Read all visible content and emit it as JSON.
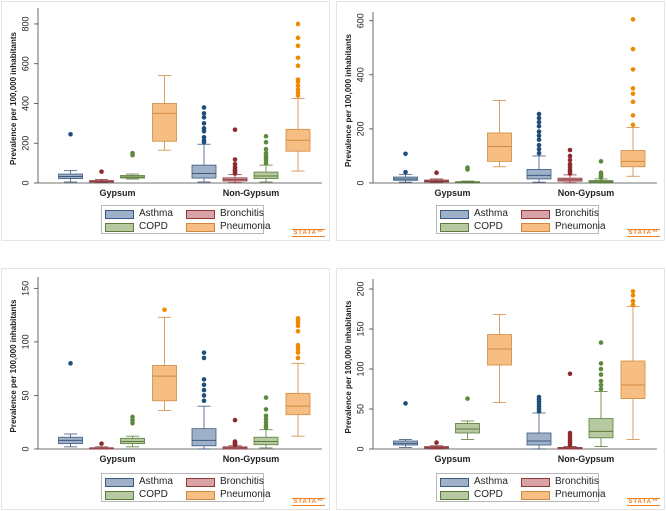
{
  "colors": {
    "Asthma": {
      "fill": "#9eb1c8",
      "line": "#3c5a80",
      "dot": "#1f4e79"
    },
    "Bronchitis": {
      "fill": "#d9a2a4",
      "line": "#8c3a3e",
      "dot": "#8c2a30"
    },
    "COPD": {
      "fill": "#b6c9a0",
      "line": "#5b7d3c",
      "dot": "#5b8a3c"
    },
    "Pneumonia": {
      "fill": "#f7be84",
      "line": "#d08a40",
      "dot": "#ef8a00"
    }
  },
  "watermark": "STATA™",
  "chart_data": [
    {
      "type": "box",
      "ylabel": "Prevalence per 100,000 inhabitants",
      "categories": [
        "Gypsum",
        "Non-Gypsum"
      ],
      "ylim": [
        0,
        850
      ],
      "yticks": [
        "0",
        "200",
        "400",
        "600",
        "800"
      ],
      "ytick_values": [
        0,
        200,
        400,
        600,
        800
      ],
      "legend": [
        "Asthma",
        "Bronchitis",
        "COPD",
        "Pneumonia"
      ],
      "series": [
        {
          "name": "Asthma",
          "boxes": [
            {
              "min": 5,
              "q1": 22,
              "median": 33,
              "q3": 45,
              "max": 62,
              "outliers": [
                245
              ]
            },
            {
              "min": 5,
              "q1": 25,
              "median": 48,
              "q3": 90,
              "max": 195,
              "outliers": [
                205,
                215,
                230,
                260,
                275,
                300,
                330,
                350,
                380
              ]
            }
          ]
        },
        {
          "name": "Bronchitis",
          "boxes": [
            {
              "min": 3,
              "q1": 5,
              "median": 8,
              "q3": 12,
              "max": 18,
              "outliers": [
                57
              ]
            },
            {
              "min": 2,
              "q1": 10,
              "median": 17,
              "q3": 26,
              "max": 42,
              "outliers": [
                48,
                55,
                62,
                70,
                80,
                95,
                118,
                268
              ]
            }
          ]
        },
        {
          "name": "COPD",
          "boxes": [
            {
              "min": 20,
              "q1": 25,
              "median": 30,
              "q3": 38,
              "max": 45,
              "outliers": [
                140,
                150
              ]
            },
            {
              "min": 5,
              "q1": 22,
              "median": 35,
              "q3": 55,
              "max": 90,
              "outliers": [
                100,
                115,
                125,
                135,
                150,
                170,
                205,
                235
              ]
            }
          ]
        },
        {
          "name": "Pneumonia",
          "boxes": [
            {
              "min": 165,
              "q1": 210,
              "median": 350,
              "q3": 400,
              "max": 540,
              "outliers": []
            },
            {
              "min": 60,
              "q1": 160,
              "median": 215,
              "q3": 270,
              "max": 425,
              "outliers": [
                440,
                455,
                470,
                490,
                510,
                520,
                590,
                630,
                690,
                730,
                800
              ]
            }
          ]
        }
      ]
    },
    {
      "type": "box",
      "ylabel": "Prevalence per 100,000 inhabitants",
      "categories": [
        "Gypsum",
        "Non-Gypsum"
      ],
      "ylim": [
        0,
        610
      ],
      "yticks": [
        "0",
        "200",
        "400",
        "600"
      ],
      "ytick_values": [
        0,
        200,
        400,
        600
      ],
      "legend": [
        "Asthma",
        "Bronchitis",
        "COPD",
        "Pneumonia"
      ],
      "series": [
        {
          "name": "Asthma",
          "boxes": [
            {
              "min": 3,
              "q1": 10,
              "median": 15,
              "q3": 22,
              "max": 32,
              "outliers": [
                40,
                108
              ]
            },
            {
              "min": 3,
              "q1": 15,
              "median": 28,
              "q3": 50,
              "max": 100,
              "outliers": [
                110,
                125,
                140,
                160,
                175,
                190,
                210,
                225,
                240,
                255
              ]
            }
          ]
        },
        {
          "name": "Bronchitis",
          "boxes": [
            {
              "min": 2,
              "q1": 4,
              "median": 7,
              "q3": 11,
              "max": 15,
              "outliers": [
                38
              ]
            },
            {
              "min": 1,
              "q1": 7,
              "median": 12,
              "q3": 18,
              "max": 30,
              "outliers": [
                35,
                42,
                50,
                60,
                70,
                85,
                100,
                122
              ]
            }
          ]
        },
        {
          "name": "COPD",
          "boxes": [
            {
              "min": 1,
              "q1": 2,
              "median": 3,
              "q3": 5,
              "max": 7,
              "outliers": [
                50,
                57
              ]
            },
            {
              "min": 0,
              "q1": 2,
              "median": 5,
              "q3": 9,
              "max": 15,
              "outliers": [
                20,
                25,
                30,
                38,
                80
              ]
            }
          ]
        },
        {
          "name": "Pneumonia",
          "boxes": [
            {
              "min": 60,
              "q1": 80,
              "median": 135,
              "q3": 185,
              "max": 305,
              "outliers": []
            },
            {
              "min": 25,
              "q1": 60,
              "median": 80,
              "q3": 120,
              "max": 205,
              "outliers": [
                215,
                250,
                300,
                330,
                350,
                420,
                495,
                605
              ]
            }
          ]
        }
      ]
    },
    {
      "type": "box",
      "ylabel": "Prevalence per 100,000 inhabitants",
      "categories": [
        "Gypsum",
        "Non-Gypsum"
      ],
      "ylim": [
        0,
        155
      ],
      "yticks": [
        "0",
        "50",
        "100",
        "150"
      ],
      "ytick_values": [
        0,
        50,
        100,
        150
      ],
      "legend": [
        "Asthma",
        "Bronchitis",
        "COPD",
        "Pneumonia"
      ],
      "series": [
        {
          "name": "Asthma",
          "boxes": [
            {
              "min": 2,
              "q1": 5,
              "median": 8,
              "q3": 11,
              "max": 14,
              "outliers": [
                80
              ]
            },
            {
              "min": 0,
              "q1": 3,
              "median": 8,
              "q3": 19,
              "max": 40,
              "outliers": [
                45,
                50,
                55,
                60,
                65,
                85,
                90
              ]
            }
          ]
        },
        {
          "name": "Bronchitis",
          "boxes": [
            {
              "min": 0,
              "q1": 0,
              "median": 1,
              "q3": 1,
              "max": 2,
              "outliers": [
                5
              ]
            },
            {
              "min": 0,
              "q1": 0,
              "median": 1,
              "q3": 2,
              "max": 3,
              "outliers": [
                4,
                5,
                6,
                7,
                27
              ]
            }
          ]
        },
        {
          "name": "COPD",
          "boxes": [
            {
              "min": 2,
              "q1": 5,
              "median": 7,
              "q3": 10,
              "max": 12,
              "outliers": [
                24,
                27,
                30
              ]
            },
            {
              "min": 1,
              "q1": 4,
              "median": 7,
              "q3": 11,
              "max": 18,
              "outliers": [
                20,
                22,
                25,
                28,
                31,
                37,
                48
              ]
            }
          ]
        },
        {
          "name": "Pneumonia",
          "boxes": [
            {
              "min": 36,
              "q1": 45,
              "median": 68,
              "q3": 78,
              "max": 123,
              "outliers": [
                130
              ]
            },
            {
              "min": 12,
              "q1": 32,
              "median": 40,
              "q3": 52,
              "max": 80,
              "outliers": [
                85,
                90,
                93,
                95,
                97,
                110,
                115,
                118,
                120,
                122
              ]
            }
          ]
        }
      ]
    },
    {
      "type": "box",
      "ylabel": "Prevalence per 100,000 inhabitants",
      "categories": [
        "Gypsum",
        "Non-Gypsum"
      ],
      "ylim": [
        0,
        205
      ],
      "yticks": [
        "0",
        "50",
        "100",
        "150",
        "200"
      ],
      "ytick_values": [
        0,
        50,
        100,
        150,
        200
      ],
      "legend": [
        "Asthma",
        "Bronchitis",
        "COPD",
        "Pneumonia"
      ],
      "series": [
        {
          "name": "Asthma",
          "boxes": [
            {
              "min": 2,
              "q1": 5,
              "median": 7,
              "q3": 10,
              "max": 12,
              "outliers": [
                57
              ]
            },
            {
              "min": 0,
              "q1": 5,
              "median": 10,
              "q3": 20,
              "max": 45,
              "outliers": [
                47,
                50,
                53,
                56,
                59,
                62,
                65
              ]
            }
          ]
        },
        {
          "name": "Bronchitis",
          "boxes": [
            {
              "min": 0,
              "q1": 1,
              "median": 2,
              "q3": 3,
              "max": 4,
              "outliers": [
                8
              ]
            },
            {
              "min": 0,
              "q1": 0,
              "median": 1,
              "q3": 2,
              "max": 3,
              "outliers": [
                5,
                8,
                11,
                14,
                17,
                20,
                94
              ]
            }
          ]
        },
        {
          "name": "COPD",
          "boxes": [
            {
              "min": 12,
              "q1": 20,
              "median": 25,
              "q3": 32,
              "max": 35,
              "outliers": [
                63
              ]
            },
            {
              "min": 3,
              "q1": 14,
              "median": 22,
              "q3": 38,
              "max": 72,
              "outliers": [
                75,
                80,
                85,
                93,
                100,
                107,
                133
              ]
            }
          ]
        },
        {
          "name": "Pneumonia",
          "boxes": [
            {
              "min": 58,
              "q1": 105,
              "median": 125,
              "q3": 143,
              "max": 168,
              "outliers": []
            },
            {
              "min": 12,
              "q1": 63,
              "median": 80,
              "q3": 110,
              "max": 178,
              "outliers": [
                180,
                185,
                192,
                197
              ]
            }
          ]
        }
      ]
    }
  ]
}
